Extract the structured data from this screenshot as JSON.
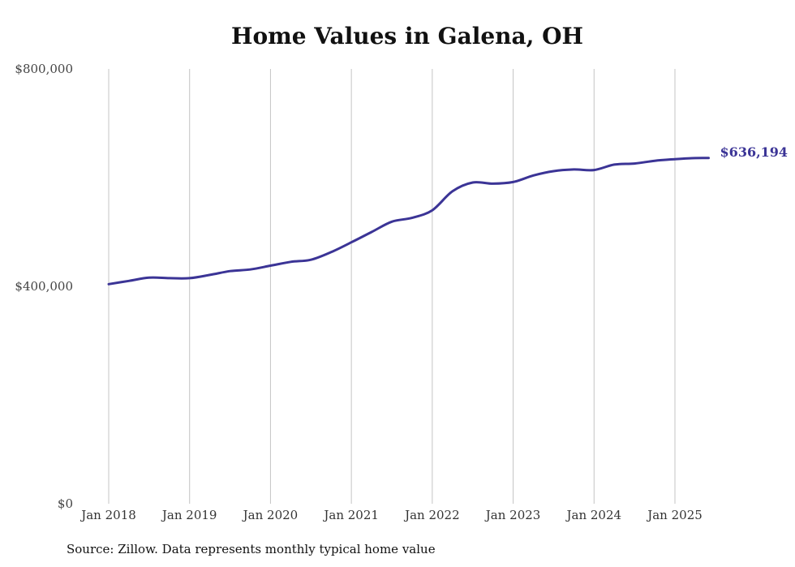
{
  "title": "Home Values in Galena, OH",
  "source": "Source: Zillow. Data represents monthly typical home value",
  "colors": {
    "line": "#3b3496",
    "grid": "#c4c4c4",
    "end_label": "#3b3496"
  },
  "chart_data": {
    "type": "line",
    "title": "Home Values in Galena, OH",
    "xlabel": "",
    "ylabel": "",
    "grid": "vertical",
    "x_ticks": [
      "Jan 2018",
      "Jan 2019",
      "Jan 2020",
      "Jan 2021",
      "Jan 2022",
      "Jan 2023",
      "Jan 2024",
      "Jan 2025"
    ],
    "y_ticks": [
      "$0",
      "$400,000",
      "$800,000"
    ],
    "ylim": [
      0,
      800000
    ],
    "xlim": [
      "2018-01",
      "2025-06"
    ],
    "end_label": "$636,194",
    "series": [
      {
        "x": [
          "2018-01",
          "2018-04",
          "2018-07",
          "2018-10",
          "2019-01",
          "2019-04",
          "2019-07",
          "2019-10",
          "2020-01",
          "2020-04",
          "2020-07",
          "2020-10",
          "2021-01",
          "2021-04",
          "2021-07",
          "2021-10",
          "2022-01",
          "2022-04",
          "2022-07",
          "2022-10",
          "2023-01",
          "2023-04",
          "2023-07",
          "2023-10",
          "2024-01",
          "2024-04",
          "2024-07",
          "2024-10",
          "2025-01",
          "2025-04",
          "2025-06"
        ],
        "y": [
          404000,
          410000,
          416000,
          415000,
          415000,
          421000,
          428000,
          431000,
          438000,
          445000,
          449000,
          463000,
          481000,
          500000,
          519000,
          526000,
          540000,
          575000,
          591000,
          589000,
          592000,
          604000,
          612000,
          615000,
          614000,
          624000,
          626000,
          631000,
          634000,
          636000,
          636194
        ]
      }
    ]
  }
}
